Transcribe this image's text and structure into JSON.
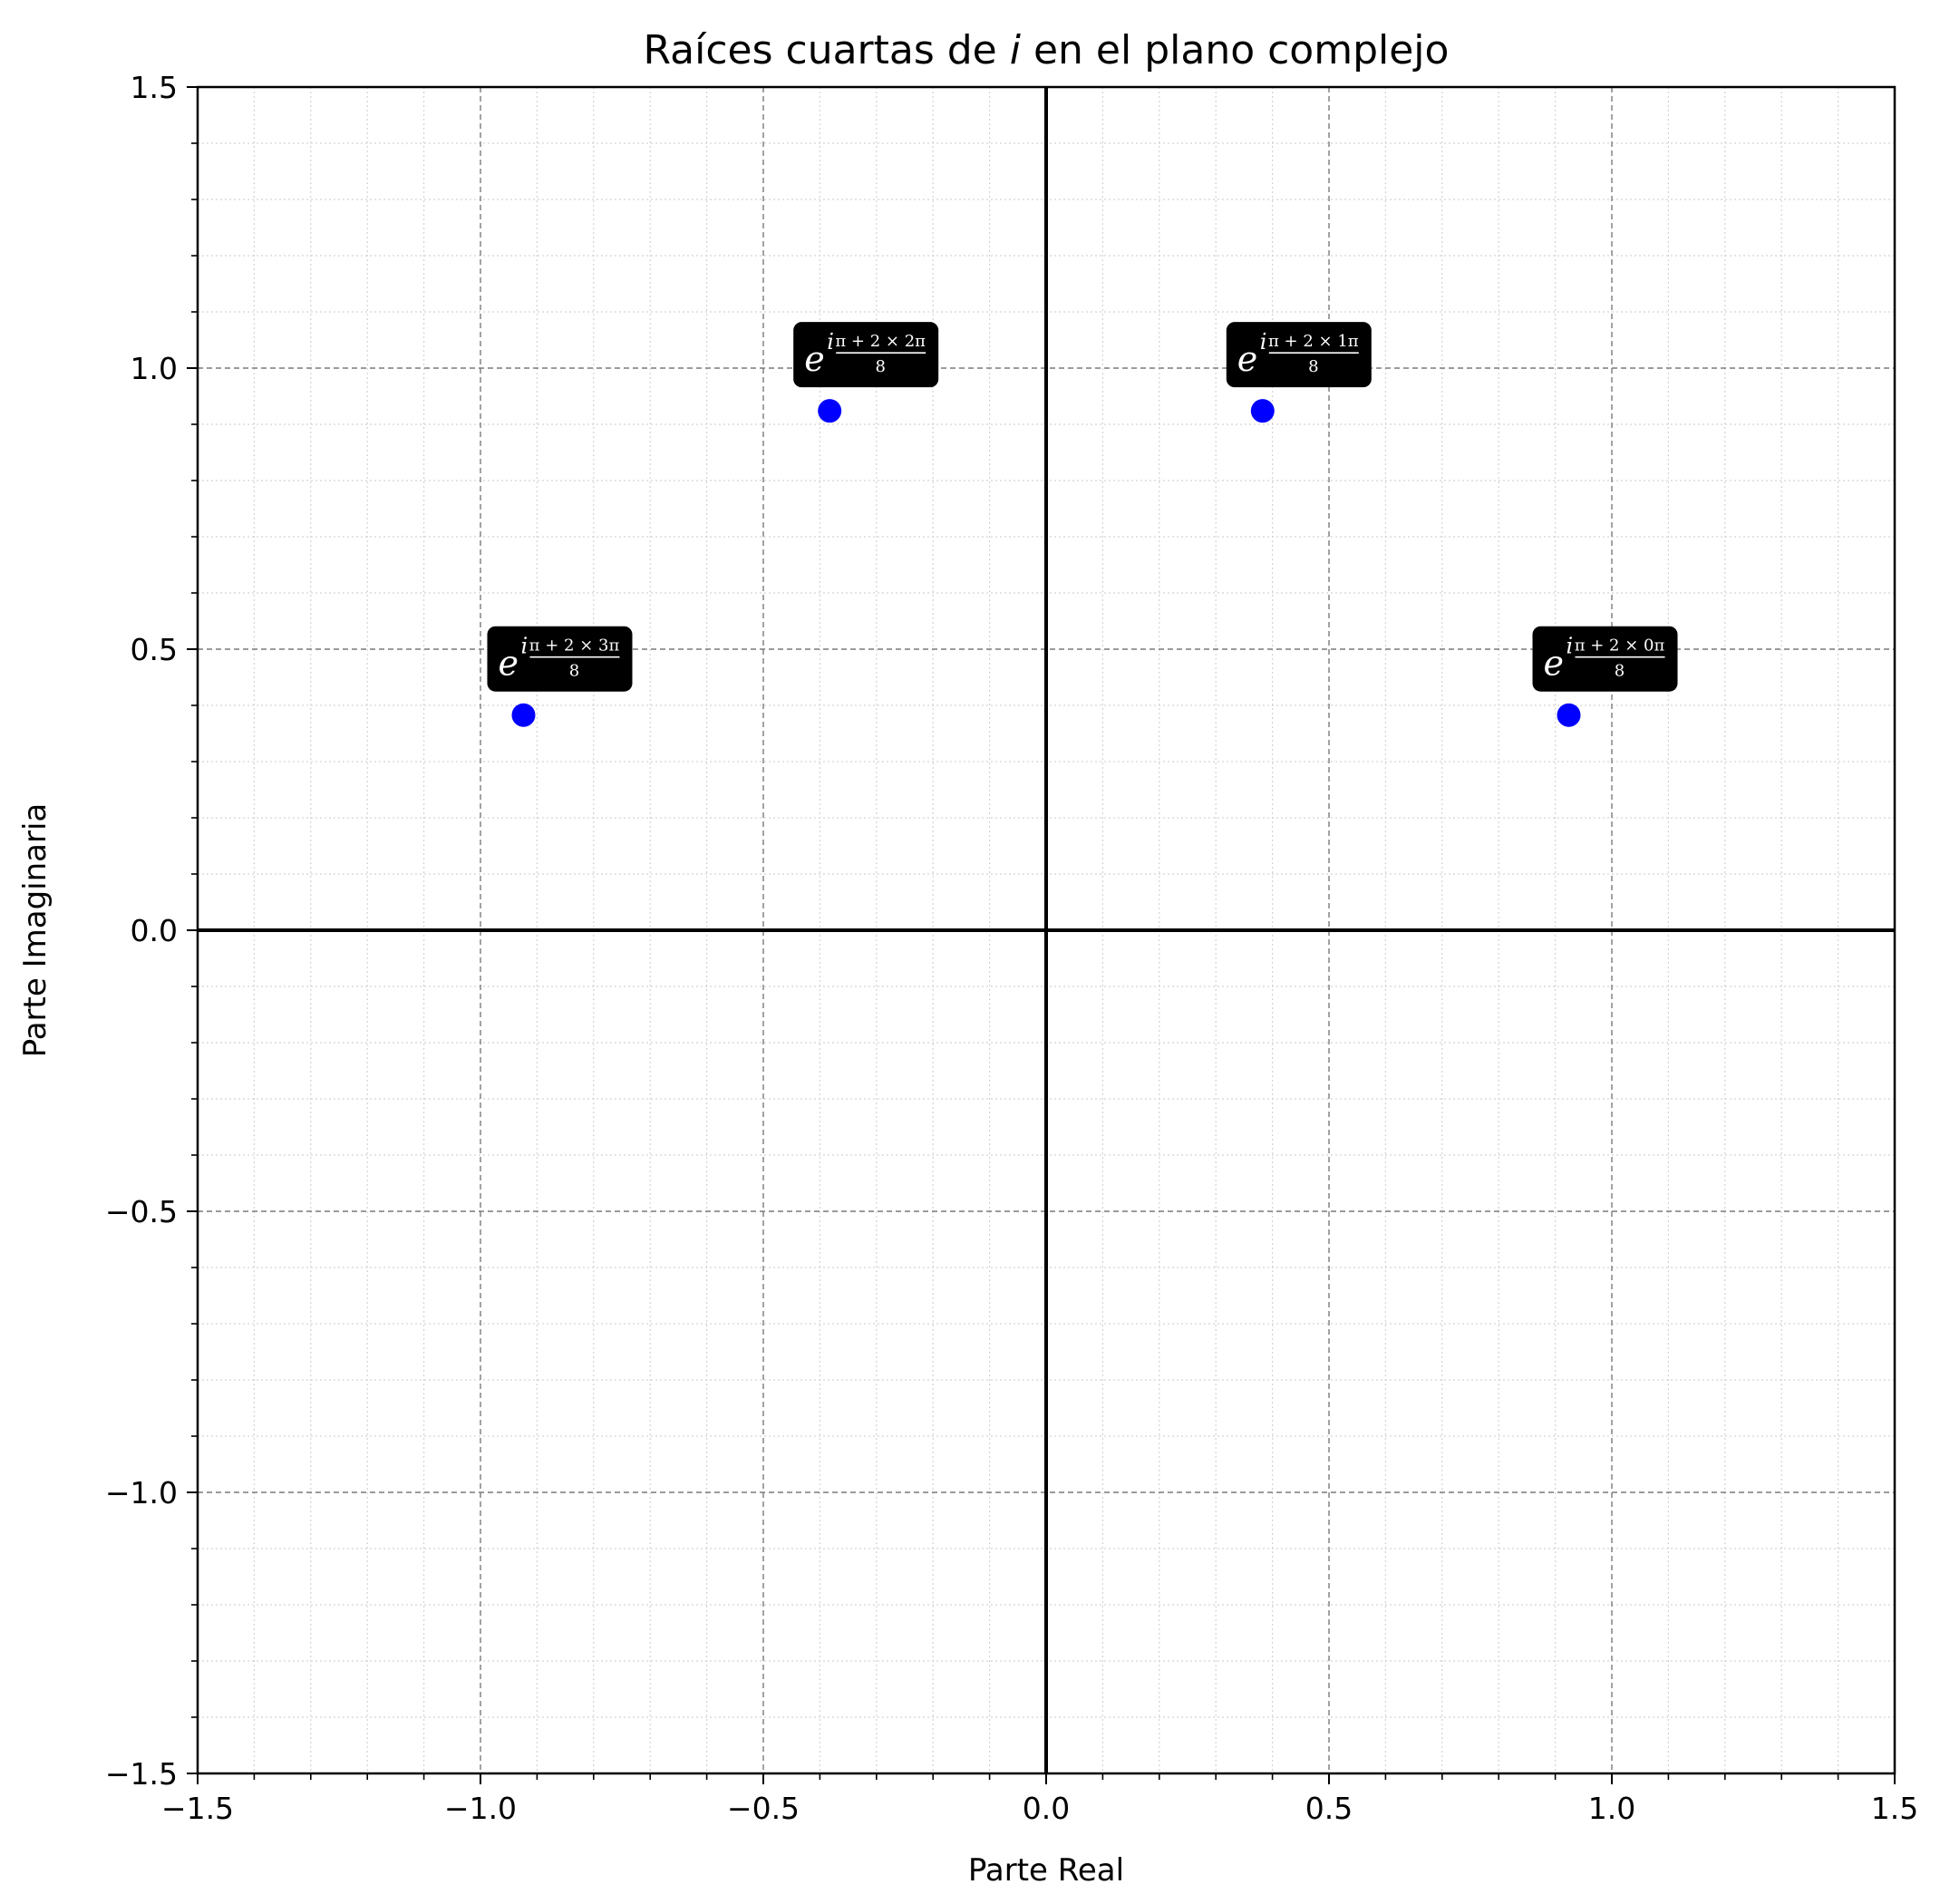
{
  "chart_data": {
    "type": "scatter",
    "title_prefix": "Raíces cuartas de ",
    "title_var": "i",
    "title_suffix": " en el plano complejo",
    "xlabel": "Parte Real",
    "ylabel": "Parte Imaginaria",
    "xlim": [
      -1.5,
      1.5
    ],
    "ylim": [
      -1.5,
      1.5
    ],
    "major_ticks": [
      -1.5,
      -1.0,
      -0.5,
      0.0,
      0.5,
      1.0,
      1.5
    ],
    "x_tick_labels": [
      "−1.5",
      "−1.0",
      "−0.5",
      "0.0",
      "0.5",
      "1.0",
      "1.5"
    ],
    "y_tick_labels": [
      "−1.5",
      "−1.0",
      "−0.5",
      "0.0",
      "0.5",
      "1.0",
      "1.5"
    ],
    "minor_step": 0.1,
    "grid": true,
    "point_color": "#0000ff",
    "label_box_color": "#000000",
    "points": [
      {
        "x": 0.9239,
        "y": 0.3827,
        "base": "e",
        "exp_top": "π + 2 × 0π",
        "exp_bottom": "8"
      },
      {
        "x": 0.3827,
        "y": 0.9239,
        "base": "e",
        "exp_top": "π + 2 × 1π",
        "exp_bottom": "8"
      },
      {
        "x": -0.3827,
        "y": 0.9239,
        "base": "e",
        "exp_top": "π + 2 × 2π",
        "exp_bottom": "8"
      },
      {
        "x": -0.9239,
        "y": 0.3827,
        "base": "e",
        "exp_top": "π + 2 × 3π",
        "exp_bottom": "8"
      }
    ]
  }
}
